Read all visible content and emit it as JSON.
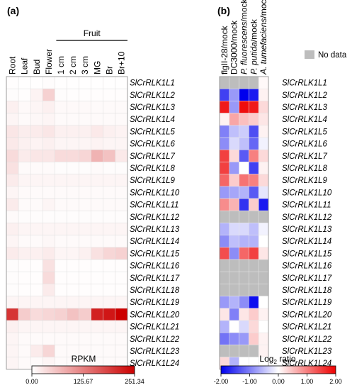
{
  "chart_data": [
    {
      "type": "heatmap",
      "panel_label": "(a)",
      "column_group_label": "Fruit",
      "columns": [
        "Root",
        "Leaf",
        "Bud",
        "Flower",
        "1 cm",
        "2 cm",
        "3 cm",
        "MG",
        "Br",
        "Br+10"
      ],
      "rows": [
        "SlCrRLK1L1",
        "SlCrRLK1L2",
        "SlCrRLK1L3",
        "SlCrRLK1L4",
        "SlCrRLK1L5",
        "SlCrRLK1L6",
        "SlCrRLK1L7",
        "SlCrRLK1L8",
        "SlCrRLK1L9",
        "SlCrRLK1L10",
        "SlCrRLK1L11",
        "SlCrRLK1L12",
        "SlCrRLK1L13",
        "SlCrRLK1L14",
        "SlCrRLK1L15",
        "SlCrRLK1L16",
        "SlCrRLK1L17",
        "SlCrRLK1L18",
        "SlCrRLK1L19",
        "SlCrRLK1L20",
        "SlCrRLK1L21",
        "SlCrRLK1L22",
        "SlCrRLK1L23",
        "SlCrRLK1L24"
      ],
      "values": [
        [
          2,
          1,
          1,
          3,
          1,
          1,
          1,
          1,
          1,
          1
        ],
        [
          3,
          2,
          12,
          45,
          3,
          2,
          2,
          2,
          2,
          2
        ],
        [
          15,
          6,
          10,
          15,
          6,
          6,
          6,
          5,
          5,
          5
        ],
        [
          10,
          5,
          8,
          10,
          5,
          5,
          5,
          5,
          5,
          5
        ],
        [
          25,
          18,
          20,
          25,
          15,
          15,
          15,
          22,
          15,
          12
        ],
        [
          22,
          15,
          12,
          15,
          10,
          10,
          10,
          12,
          10,
          10
        ],
        [
          35,
          20,
          25,
          25,
          35,
          35,
          40,
          75,
          60,
          22
        ],
        [
          30,
          5,
          5,
          5,
          3,
          3,
          3,
          5,
          3,
          3
        ],
        [
          20,
          10,
          10,
          10,
          10,
          10,
          10,
          10,
          10,
          10
        ],
        [
          10,
          5,
          5,
          5,
          5,
          5,
          5,
          5,
          5,
          5
        ],
        [
          20,
          5,
          5,
          10,
          5,
          5,
          5,
          5,
          5,
          5
        ],
        [
          5,
          3,
          3,
          3,
          3,
          3,
          3,
          3,
          3,
          3
        ],
        [
          15,
          10,
          10,
          10,
          10,
          10,
          10,
          10,
          10,
          10
        ],
        [
          10,
          5,
          5,
          8,
          5,
          5,
          5,
          5,
          5,
          5
        ],
        [
          20,
          15,
          15,
          20,
          10,
          10,
          15,
          30,
          40,
          45
        ],
        [
          3,
          2,
          2,
          30,
          2,
          2,
          2,
          2,
          2,
          2
        ],
        [
          3,
          2,
          2,
          35,
          2,
          2,
          2,
          2,
          2,
          2
        ],
        [
          3,
          2,
          2,
          20,
          2,
          2,
          2,
          2,
          2,
          2
        ],
        [
          10,
          10,
          10,
          10,
          10,
          10,
          10,
          10,
          10,
          10
        ],
        [
          200,
          50,
          35,
          40,
          45,
          60,
          50,
          220,
          230,
          251
        ],
        [
          15,
          10,
          10,
          10,
          10,
          10,
          10,
          10,
          10,
          10
        ],
        [
          10,
          5,
          5,
          5,
          5,
          5,
          5,
          5,
          5,
          5
        ],
        [
          10,
          5,
          20,
          40,
          5,
          5,
          5,
          5,
          5,
          5
        ],
        [
          10,
          5,
          5,
          10,
          5,
          5,
          5,
          5,
          5,
          5
        ]
      ],
      "colorbar": {
        "label": "RPKM",
        "min": 0,
        "max": 251.34,
        "tick_labels": [
          "0.00",
          "125.67",
          "251.34"
        ],
        "colors": [
          "#ffffff",
          "#cc0000"
        ]
      }
    },
    {
      "type": "heatmap",
      "panel_label": "(b)",
      "columns": [
        "flgII-28/mock",
        "DC3000/mock",
        "P. fluorescens/mock",
        "P. putida/mock",
        "A. tumefaciens/mock"
      ],
      "rows": [
        "SlCrRLK1L1",
        "SlCrRLK1L2",
        "SlCrRLK1L3",
        "SlCrRLK1L4",
        "SlCrRLK1L5",
        "SlCrRLK1L6",
        "SlCrRLK1L7",
        "SlCrRLK1L8",
        "SlCrRLK1L9",
        "SlCrRLK1L10",
        "SlCrRLK1L11",
        "SlCrRLK1L12",
        "SlCrRLK1L13",
        "SlCrRLK1L14",
        "SlCrRLK1L15",
        "SlCrRLK1L16",
        "SlCrRLK1L17",
        "SlCrRLK1L18",
        "SlCrRLK1L19",
        "SlCrRLK1L20",
        "SlCrRLK1L21",
        "SlCrRLK1L22",
        "SlCrRLK1L23",
        "SlCrRLK1L24"
      ],
      "values": [
        [
          null,
          null,
          null,
          null,
          0.05
        ],
        [
          -1.5,
          -0.8,
          -2.0,
          -1.8,
          0.1
        ],
        [
          1.8,
          -0.8,
          1.9,
          1.8,
          0.3
        ],
        [
          0.1,
          0.7,
          0.5,
          0.4,
          0.2
        ],
        [
          -1.0,
          -0.5,
          -0.4,
          -1.4,
          0.1
        ],
        [
          -0.9,
          -0.3,
          -0.5,
          -1.2,
          -0.1
        ],
        [
          1.5,
          0.3,
          -1.3,
          1.0,
          0.3
        ],
        [
          1.5,
          -0.8,
          0.0,
          -1.5,
          0.1
        ],
        [
          1.2,
          0.4,
          1.1,
          1.0,
          0.3
        ],
        [
          -0.8,
          -0.7,
          -0.6,
          -1.3,
          -0.2
        ],
        [
          0.9,
          0.6,
          -1.6,
          0.4,
          -1.8
        ],
        [
          null,
          null,
          null,
          null,
          null
        ],
        [
          -0.6,
          -0.3,
          -0.3,
          -0.5,
          -0.1
        ],
        [
          -0.9,
          -0.5,
          -0.6,
          -0.6,
          0.0
        ],
        [
          1.4,
          -0.9,
          1.2,
          1.5,
          0.2
        ],
        [
          null,
          null,
          null,
          null,
          null
        ],
        [
          null,
          null,
          null,
          null,
          null
        ],
        [
          null,
          null,
          null,
          null,
          null
        ],
        [
          -0.8,
          -0.6,
          -0.9,
          -1.9,
          0.0
        ],
        [
          0.2,
          -1.0,
          0.2,
          0.4,
          0.1
        ],
        [
          -0.6,
          0.0,
          -0.3,
          0.3,
          0.0
        ],
        [
          -1.1,
          -0.9,
          -0.8,
          0.4,
          0.1
        ],
        [
          null,
          null,
          null,
          null,
          0.1
        ],
        [
          0.3,
          -0.6,
          0.0,
          0.0,
          0.0
        ]
      ],
      "legend": {
        "no_data_label": "No data",
        "no_data_color": "#bdbdbd"
      },
      "colorbar": {
        "label": "Log",
        "label_subscript": "2",
        "label_suffix": " ratio",
        "min": -2,
        "max": 2,
        "tick_labels": [
          "-2.00",
          "-1.00",
          "0.00",
          "1.00",
          "2.00"
        ],
        "colors": [
          "#0000ee",
          "#ffffff",
          "#ee0000"
        ]
      }
    }
  ]
}
